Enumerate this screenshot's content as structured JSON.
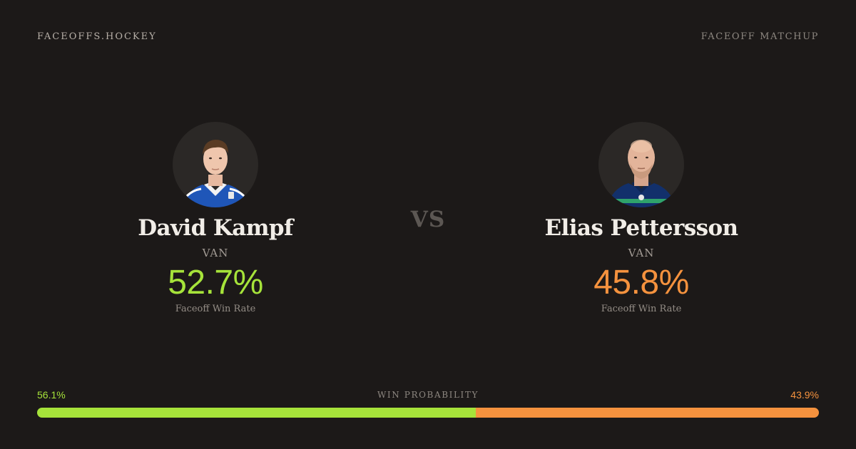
{
  "header": {
    "brand": "FACEOFFS.HOCKEY",
    "page_tag": "FACEOFF MATCHUP"
  },
  "vs_label": "VS",
  "players": [
    {
      "name": "David Kampf",
      "team": "VAN",
      "rate": "52.7%",
      "rate_label": "Faceoff Win Rate",
      "accent_color": "#a6e33a",
      "photo": "player-headshot-david-kampf"
    },
    {
      "name": "Elias Pettersson",
      "team": "VAN",
      "rate": "45.8%",
      "rate_label": "Faceoff Win Rate",
      "accent_color": "#f5923e",
      "photo": "player-headshot-elias-pettersson"
    }
  ],
  "win_probability": {
    "title": "WIN PROBABILITY",
    "left_label": "56.1%",
    "right_label": "43.9%",
    "left_fraction": 0.561,
    "right_fraction": 0.439,
    "left_color": "#a6e33a",
    "right_color": "#f5923e"
  }
}
